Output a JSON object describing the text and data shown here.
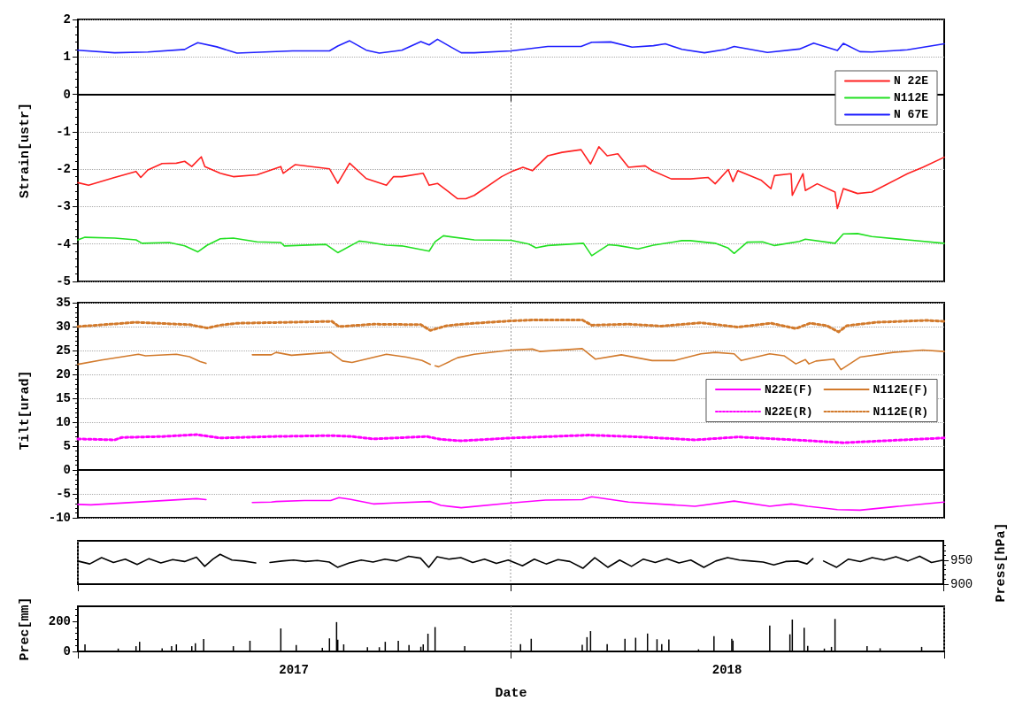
{
  "chart_data": [
    {
      "type": "line",
      "ylabel": "Strain[ustr]",
      "xlim": [
        "2017-01-01",
        "2019-01-01"
      ],
      "xticks": [
        {
          "value": "2017-01-01",
          "label": null
        },
        {
          "value": "2018-01-01",
          "label": null
        },
        {
          "value": "2019-01-01",
          "label": null
        }
      ],
      "ylim": [
        -5,
        2
      ],
      "yticks": [
        -5,
        -4,
        -3,
        -2,
        -1,
        0,
        1,
        2
      ],
      "tick_labels": "y",
      "grid": "y",
      "ref_lines": [
        {
          "axis": "x",
          "value": "2018-01-01",
          "color": "#999999",
          "line_style": "dotted"
        }
      ],
      "legend": "top right",
      "series": [
        {
          "name": "N 22E",
          "color": "#ff2020",
          "x": [
            "2017-01-01",
            "2017-01-10",
            "2017-02-01",
            "2017-02-19",
            "2017-02-23",
            "2017-03-01",
            "2017-03-13",
            "2017-03-25",
            "2017-04-01",
            "2017-04-07",
            "2017-04-15",
            "2017-04-18",
            "2017-05-01",
            "2017-05-12",
            "2017-06-01",
            "2017-06-21",
            "2017-06-23",
            "2017-07-03",
            "2017-08-01",
            "2017-08-08",
            "2017-08-18",
            "2017-09-01",
            "2017-09-18",
            "2017-09-24",
            "2017-10-01",
            "2017-10-19",
            "2017-10-24",
            "2017-10-31",
            "2017-11-17",
            "2017-11-24",
            "2017-12-01",
            "2017-12-24",
            "2018-01-01",
            "2018-01-11",
            "2018-01-19",
            "2018-02-01",
            "2018-02-13",
            "2018-03-01",
            "2018-03-09",
            "2018-03-16",
            "2018-03-23",
            "2018-04-01",
            "2018-04-10",
            "2018-04-24",
            "2018-04-30",
            "2018-05-16",
            "2018-06-01",
            "2018-06-16",
            "2018-06-22",
            "2018-07-03",
            "2018-07-07",
            "2018-07-11",
            "2018-07-31",
            "2018-08-08",
            "2018-08-11",
            "2018-08-25",
            "2018-08-26",
            "2018-09-04",
            "2018-09-06",
            "2018-09-16",
            "2018-10-01",
            "2018-10-03",
            "2018-10-08",
            "2018-10-20",
            "2018-11-01",
            "2018-12-01",
            "2018-12-14",
            "2019-01-01"
          ],
          "values": [
            -2.36,
            -2.43,
            -2.22,
            -2.06,
            -2.22,
            -2.02,
            -1.85,
            -1.84,
            -1.79,
            -1.93,
            -1.67,
            -1.93,
            -2.11,
            -2.2,
            -2.15,
            -1.93,
            -2.11,
            -1.88,
            -1.99,
            -2.38,
            -1.84,
            -2.25,
            -2.43,
            -2.2,
            -2.2,
            -2.11,
            -2.43,
            -2.38,
            -2.79,
            -2.79,
            -2.7,
            -2.2,
            -2.07,
            -1.95,
            -2.04,
            -1.64,
            -1.55,
            -1.48,
            -1.86,
            -1.4,
            -1.64,
            -1.59,
            -1.95,
            -1.91,
            -2.04,
            -2.26,
            -2.26,
            -2.22,
            -2.39,
            -2.01,
            -2.33,
            -2.04,
            -2.3,
            -2.52,
            -2.17,
            -2.12,
            -2.7,
            -2.12,
            -2.57,
            -2.39,
            -2.61,
            -3.05,
            -2.52,
            -2.65,
            -2.61,
            -2.12,
            -1.95,
            -1.68
          ]
        },
        {
          "name": "N112E",
          "color": "#22e022",
          "x": [
            "2017-01-01",
            "2017-01-07",
            "2017-02-01",
            "2017-02-19",
            "2017-02-24",
            "2017-03-19",
            "2017-04-01",
            "2017-04-12",
            "2017-04-20",
            "2017-05-01",
            "2017-05-12",
            "2017-06-01",
            "2017-06-21",
            "2017-06-24",
            "2017-07-29",
            "2017-08-08",
            "2017-08-26",
            "2017-09-01",
            "2017-09-18",
            "2017-10-01",
            "2017-10-24",
            "2017-10-29",
            "2017-11-05",
            "2017-12-01",
            "2018-01-01",
            "2018-01-16",
            "2018-01-22",
            "2018-02-01",
            "2018-03-03",
            "2018-03-10",
            "2018-03-24",
            "2018-04-01",
            "2018-04-18",
            "2018-05-01",
            "2018-05-25",
            "2018-06-01",
            "2018-06-22",
            "2018-07-03",
            "2018-07-08",
            "2018-07-19",
            "2018-08-01",
            "2018-08-11",
            "2018-09-01",
            "2018-09-06",
            "2018-10-01",
            "2018-10-08",
            "2018-10-20",
            "2018-11-01",
            "2018-12-01",
            "2019-01-01"
          ],
          "values": [
            -3.89,
            -3.82,
            -3.84,
            -3.89,
            -3.98,
            -3.96,
            -4.05,
            -4.21,
            -4.03,
            -3.86,
            -3.84,
            -3.94,
            -3.96,
            -4.05,
            -4.01,
            -4.23,
            -3.92,
            -3.94,
            -4.03,
            -4.05,
            -4.19,
            -3.94,
            -3.78,
            -3.89,
            -3.9,
            -4.0,
            -4.1,
            -4.04,
            -3.98,
            -4.31,
            -4.02,
            -4.04,
            -4.13,
            -4.03,
            -3.91,
            -3.91,
            -3.98,
            -4.11,
            -4.25,
            -3.95,
            -3.94,
            -4.04,
            -3.93,
            -3.87,
            -3.98,
            -3.73,
            -3.72,
            -3.8,
            -3.89,
            -3.98
          ]
        },
        {
          "name": "N 67E",
          "color": "#1f1fff",
          "x": [
            "2017-01-01",
            "2017-02-01",
            "2017-03-01",
            "2017-04-01",
            "2017-04-05",
            "2017-04-12",
            "2017-04-28",
            "2017-05-15",
            "2017-07-01",
            "2017-08-01",
            "2017-08-08",
            "2017-08-18",
            "2017-09-01",
            "2017-09-12",
            "2017-10-01",
            "2017-10-17",
            "2017-10-24",
            "2017-10-31",
            "2017-11-11",
            "2017-11-20",
            "2017-12-01",
            "2018-01-01",
            "2018-02-01",
            "2018-03-01",
            "2018-03-10",
            "2018-03-26",
            "2018-04-13",
            "2018-05-01",
            "2018-05-11",
            "2018-05-25",
            "2018-06-13",
            "2018-07-01",
            "2018-07-08",
            "2018-08-05",
            "2018-09-01",
            "2018-09-13",
            "2018-10-03",
            "2018-10-08",
            "2018-10-22",
            "2018-11-01",
            "2018-12-01",
            "2019-01-01"
          ],
          "values": [
            1.18,
            1.11,
            1.13,
            1.2,
            1.27,
            1.38,
            1.27,
            1.1,
            1.16,
            1.16,
            1.29,
            1.43,
            1.18,
            1.1,
            1.18,
            1.41,
            1.32,
            1.47,
            1.27,
            1.11,
            1.11,
            1.16,
            1.28,
            1.28,
            1.39,
            1.4,
            1.26,
            1.3,
            1.35,
            1.2,
            1.11,
            1.2,
            1.28,
            1.12,
            1.21,
            1.37,
            1.17,
            1.36,
            1.14,
            1.13,
            1.19,
            1.35
          ]
        }
      ]
    },
    {
      "type": "line",
      "ylabel": "Tilt[urad]",
      "xlim": [
        "2017-01-01",
        "2019-01-01"
      ],
      "xticks": [
        {
          "value": "2017-01-01",
          "label": null
        },
        {
          "value": "2018-01-01",
          "label": null
        },
        {
          "value": "2019-01-01",
          "label": null
        }
      ],
      "ylim": [
        -10,
        35
      ],
      "yticks": [
        -10,
        -5,
        0,
        5,
        10,
        15,
        20,
        25,
        30,
        35
      ],
      "tick_labels": "y",
      "grid": "y",
      "ref_lines": [
        {
          "axis": "x",
          "value": "2018-01-01",
          "color": "#999999",
          "line_style": "dotted"
        }
      ],
      "legend": "right",
      "series": [
        {
          "name": "N22E(F)",
          "color": "#ff00ff",
          "line_style": "solid",
          "x": [
            "2017-01-01",
            "2017-01-12",
            "2017-04-11",
            "2017-04-19",
            "2017-05-10",
            "2017-05-28",
            "2017-06-13",
            "2017-06-17",
            "2017-07-11",
            "2017-08-02",
            "2017-08-09",
            "2017-08-18",
            "2017-09-07",
            "2017-09-24",
            "2017-10-25",
            "2017-11-03",
            "2017-11-20",
            "2018-01-01",
            "2018-01-30",
            "2018-03-02",
            "2018-03-10",
            "2018-04-10",
            "2018-06-05",
            "2018-07-08",
            "2018-08-07",
            "2018-08-25",
            "2018-09-08",
            "2018-10-03",
            "2018-10-22",
            "2018-11-19",
            "2019-01-01"
          ],
          "values": [
            -7.2,
            -7.3,
            -6.0,
            -6.2,
            null,
            -6.8,
            -6.7,
            -6.6,
            -6.4,
            -6.4,
            -5.8,
            -6.1,
            -7.1,
            -6.9,
            -6.6,
            -7.4,
            -7.9,
            -6.9,
            -6.3,
            -6.2,
            -5.6,
            -6.7,
            -7.6,
            -6.5,
            -7.6,
            -7.1,
            -7.6,
            -8.3,
            -8.4,
            -7.7,
            -6.7
          ]
        },
        {
          "name": "N112E(F)",
          "color": "#d27a2c",
          "line_style": "solid",
          "x": [
            "2017-01-01",
            "2017-01-21",
            "2017-02-21",
            "2017-02-27",
            "2017-03-25",
            "2017-04-05",
            "2017-04-14",
            "2017-04-19",
            "2017-05-10",
            "2017-05-28",
            "2017-06-13",
            "2017-06-17",
            "2017-06-30",
            "2017-08-02",
            "2017-08-12",
            "2017-08-20",
            "2017-09-18",
            "2017-10-05",
            "2017-10-18",
            "2017-10-25",
            "2017-10-27",
            "2017-10-29",
            "2017-11-01",
            "2017-11-17",
            "2017-12-01",
            "2018-01-01",
            "2018-01-19",
            "2018-01-25",
            "2018-03-02",
            "2018-03-13",
            "2018-04-04",
            "2018-04-30",
            "2018-05-19",
            "2018-06-10",
            "2018-06-22",
            "2018-07-08",
            "2018-07-14",
            "2018-08-07",
            "2018-08-19",
            "2018-08-29",
            "2018-09-06",
            "2018-09-09",
            "2018-09-15",
            "2018-09-30",
            "2018-10-06",
            "2018-10-22",
            "2018-11-19",
            "2018-12-14",
            "2019-01-01"
          ],
          "values": [
            22.1,
            23.0,
            24.2,
            23.9,
            24.2,
            23.7,
            22.7,
            22.3,
            null,
            24.1,
            24.1,
            24.6,
            24.0,
            24.6,
            22.8,
            22.5,
            24.2,
            23.6,
            22.9,
            22.1,
            null,
            21.8,
            21.6,
            23.5,
            24.2,
            25.1,
            25.3,
            24.8,
            25.4,
            23.2,
            24.1,
            22.9,
            22.9,
            24.3,
            24.6,
            24.3,
            22.9,
            24.3,
            23.9,
            22.2,
            23.1,
            22.2,
            22.8,
            23.2,
            21.0,
            23.6,
            24.6,
            25.1,
            24.8
          ]
        },
        {
          "name": "N22E(R)",
          "color": "#ff00ff",
          "line_style": "dotted",
          "x": [
            "2017-01-01",
            "2017-02-01",
            "2017-02-07",
            "2017-03-13",
            "2017-04-11",
            "2017-05-01",
            "2017-06-13",
            "2017-08-03",
            "2017-08-20",
            "2017-09-07",
            "2017-10-22",
            "2017-11-03",
            "2017-11-20",
            "2018-01-01",
            "2018-03-08",
            "2018-04-21",
            "2018-06-05",
            "2018-07-11",
            "2018-08-28",
            "2018-10-08",
            "2018-11-19",
            "2019-01-01"
          ],
          "values": [
            6.5,
            6.3,
            6.8,
            7.0,
            7.4,
            6.7,
            7.0,
            7.2,
            7.0,
            6.5,
            7.0,
            6.4,
            6.1,
            6.7,
            7.3,
            6.9,
            6.3,
            6.9,
            6.3,
            5.7,
            6.2,
            6.7
          ]
        },
        {
          "name": "N112E(R)",
          "color": "#d27a2c",
          "line_style": "dotted",
          "x": [
            "2017-01-01",
            "2017-02-19",
            "2017-04-05",
            "2017-04-20",
            "2017-05-01",
            "2017-05-15",
            "2017-06-27",
            "2017-08-03",
            "2017-08-09",
            "2017-09-07",
            "2017-10-17",
            "2017-10-25",
            "2017-11-08",
            "2017-12-01",
            "2018-01-01",
            "2018-01-22",
            "2018-03-02",
            "2018-03-10",
            "2018-04-10",
            "2018-05-08",
            "2018-06-10",
            "2018-07-11",
            "2018-08-08",
            "2018-08-29",
            "2018-09-10",
            "2018-09-24",
            "2018-10-04",
            "2018-10-11",
            "2018-11-05",
            "2018-12-17",
            "2019-01-01"
          ],
          "values": [
            30.0,
            30.9,
            30.4,
            29.7,
            30.3,
            30.7,
            30.9,
            31.1,
            30.0,
            30.5,
            30.4,
            29.2,
            30.2,
            30.7,
            31.2,
            31.4,
            31.4,
            30.3,
            30.5,
            30.1,
            30.8,
            29.9,
            30.7,
            29.6,
            30.7,
            30.2,
            28.9,
            30.2,
            30.9,
            31.3,
            31.1
          ]
        }
      ]
    },
    {
      "type": "line",
      "y2label": "Press[hPa]",
      "xlim": [
        "2017-01-01",
        "2019-01-01"
      ],
      "xticks": [
        {
          "value": "2017-01-01",
          "label": null
        },
        {
          "value": "2018-01-01",
          "label": null
        },
        {
          "value": "2019-01-01",
          "label": null
        }
      ],
      "y2lim": [
        900,
        990
      ],
      "y2ticks": [
        900,
        950
      ],
      "tick_labels": "y",
      "grid": "x",
      "series": [
        {
          "axis": "y2",
          "color": "#000000",
          "x": [
            "2017-01-01",
            "2017-01-11",
            "2017-01-21",
            "2017-01-31",
            "2017-02-10",
            "2017-02-20",
            "2017-03-02",
            "2017-03-12",
            "2017-03-22",
            "2017-04-01",
            "2017-04-11",
            "2017-04-18",
            "2017-04-25",
            "2017-05-01",
            "2017-05-11",
            "2017-05-21",
            "2017-05-31",
            "2017-06-05",
            "2017-06-12",
            "2017-06-22",
            "2017-07-02",
            "2017-07-12",
            "2017-07-22",
            "2017-08-01",
            "2017-08-08",
            "2017-08-18",
            "2017-08-28",
            "2017-09-07",
            "2017-09-17",
            "2017-09-27",
            "2017-10-07",
            "2017-10-17",
            "2017-10-24",
            "2017-10-31",
            "2017-11-10",
            "2017-11-20",
            "2017-11-30",
            "2017-12-10",
            "2017-12-20",
            "2017-12-30",
            "2018-01-11",
            "2018-01-21",
            "2018-01-31",
            "2018-02-10",
            "2018-02-20",
            "2018-03-03",
            "2018-03-13",
            "2018-03-24",
            "2018-04-03",
            "2018-04-13",
            "2018-04-23",
            "2018-05-03",
            "2018-05-13",
            "2018-05-23",
            "2018-06-02",
            "2018-06-13",
            "2018-06-23",
            "2018-07-03",
            "2018-07-13",
            "2018-07-23",
            "2018-08-02",
            "2018-08-11",
            "2018-08-21",
            "2018-08-31",
            "2018-09-08",
            "2018-09-13",
            "2018-09-15",
            "2018-09-22",
            "2018-10-03",
            "2018-10-13",
            "2018-10-23",
            "2018-11-02",
            "2018-11-12",
            "2018-11-22",
            "2018-12-02",
            "2018-12-12",
            "2018-12-22",
            "2019-01-01"
          ],
          "values": [
            948,
            942,
            955,
            945,
            952,
            941,
            953,
            944,
            951,
            947,
            956,
            937,
            952,
            962,
            950,
            948,
            944,
            null,
            945,
            948,
            950,
            947,
            949,
            946,
            935,
            944,
            950,
            946,
            952,
            948,
            958,
            954,
            935,
            957,
            952,
            955,
            945,
            952,
            943,
            950,
            938,
            952,
            942,
            951,
            947,
            933,
            955,
            935,
            950,
            937,
            952,
            945,
            953,
            944,
            950,
            935,
            948,
            955,
            950,
            948,
            946,
            940,
            947,
            948,
            942,
            953,
            null,
            948,
            935,
            952,
            947,
            955,
            950,
            957,
            948,
            958,
            945,
            950
          ]
        }
      ]
    },
    {
      "type": "bar",
      "ylabel": "Prec[mm]",
      "xlabel": "Date",
      "xlim": [
        "2017-01-01",
        "2019-01-01"
      ],
      "xticks": [
        {
          "value": "2017-01-01",
          "label": null
        },
        {
          "value": "2017-07-02",
          "label": "2017"
        },
        {
          "value": "2018-01-01",
          "label": null
        },
        {
          "value": "2018-07-02",
          "label": "2018"
        },
        {
          "value": "2019-01-01",
          "label": null
        }
      ],
      "ylim": [
        0,
        300
      ],
      "yticks": [
        0,
        200
      ],
      "grid": "x",
      "series": [
        {
          "color": "#000000",
          "x": [
            "2017-01-07",
            "2017-02-04",
            "2017-02-19",
            "2017-02-22",
            "2017-03-13",
            "2017-03-21",
            "2017-03-25",
            "2017-04-07",
            "2017-04-10",
            "2017-04-17",
            "2017-05-12",
            "2017-05-26",
            "2017-06-21",
            "2017-07-04",
            "2017-07-26",
            "2017-08-01",
            "2017-08-07",
            "2017-08-08",
            "2017-08-13",
            "2017-09-02",
            "2017-09-12",
            "2017-09-17",
            "2017-09-28",
            "2017-10-07",
            "2017-10-17",
            "2017-10-19",
            "2017-10-23",
            "2017-10-29",
            "2017-11-23",
            "2018-01-09",
            "2018-01-18",
            "2018-03-02",
            "2018-03-06",
            "2018-03-09",
            "2018-03-23",
            "2018-04-07",
            "2018-04-16",
            "2018-04-26",
            "2018-05-04",
            "2018-05-08",
            "2018-05-14",
            "2018-06-08",
            "2018-06-21",
            "2018-07-06",
            "2018-07-07",
            "2018-08-07",
            "2018-08-24",
            "2018-08-26",
            "2018-09-05",
            "2018-09-08",
            "2018-09-22",
            "2018-09-28",
            "2018-10-01",
            "2018-10-28",
            "2018-11-08",
            "2018-12-13"
          ],
          "values": [
            47,
            19,
            35,
            64,
            21,
            35,
            47,
            35,
            54,
            82,
            35,
            71,
            153,
            42,
            24,
            87,
            195,
            78,
            47,
            28,
            28,
            64,
            71,
            42,
            31,
            47,
            118,
            162,
            35,
            49,
            84,
            44,
            95,
            135,
            49,
            84,
            91,
            119,
            81,
            49,
            79,
            14,
            102,
            84,
            72,
            172,
            114,
            212,
            158,
            37,
            19,
            30,
            216,
            35,
            21,
            30
          ]
        }
      ]
    }
  ]
}
